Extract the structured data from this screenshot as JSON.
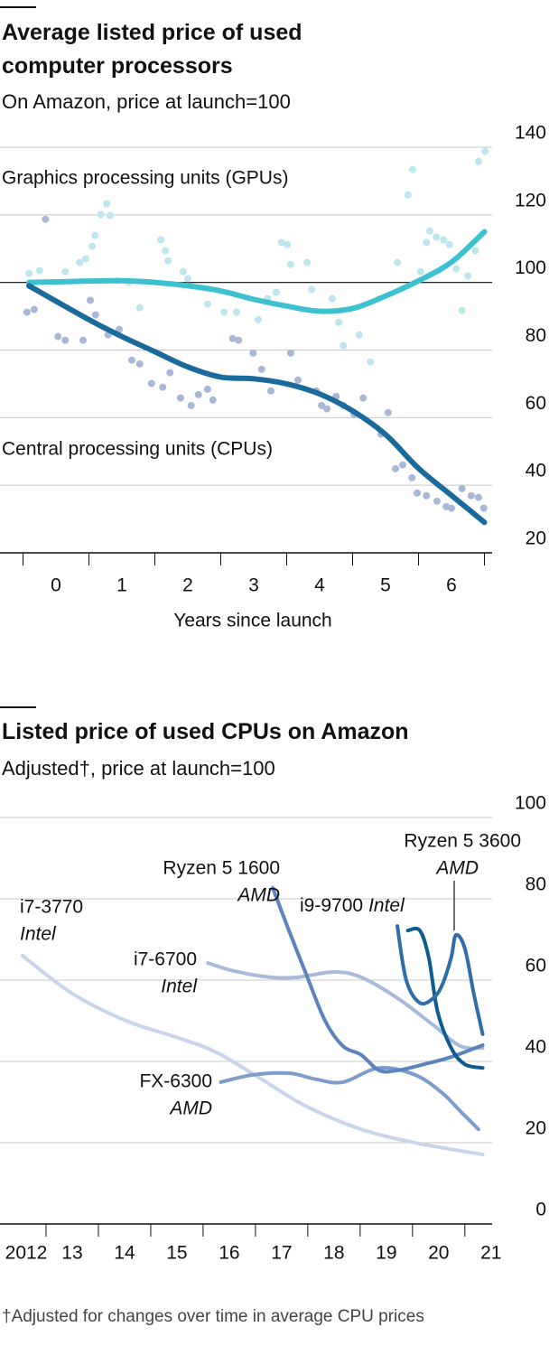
{
  "chart_data": [
    {
      "type": "line",
      "title": "Average listed price of used computer processors",
      "subtitle": "On Amazon, price at launch=100",
      "x_label": "Years since launch",
      "xlim": [
        -0.5,
        6.5
      ],
      "xticks": [
        0,
        1,
        2,
        3,
        4,
        5,
        6
      ],
      "ylim": [
        20,
        140
      ],
      "yticks": [
        20,
        40,
        60,
        80,
        100,
        120,
        140
      ],
      "reference_line": 100,
      "grid": true,
      "series": [
        {
          "name": "Graphics processing units (GPUs)",
          "color": "#3ec1cf",
          "x": [
            -0.41,
            0.5,
            1,
            1.5,
            2,
            2.5,
            3,
            3.5,
            4,
            4.5,
            5,
            5.5,
            6,
            6.5
          ],
          "values": [
            100,
            100.4,
            100.5,
            100,
            99,
            97.5,
            95,
            93,
            91.5,
            92.3,
            96,
            100.5,
            106,
            115
          ],
          "points": {
            "color": "#bde6ee",
            "x": [
              -0.41,
              -0.25,
              0.14,
              0.36,
              0.45,
              0.55,
              0.59,
              0.68,
              0.77,
              0.82,
              0.93,
              1.1,
              1.27,
              1.59,
              1.66,
              1.7,
              1.93,
              2.0,
              2.3,
              2.55,
              2.74,
              3.07,
              3.21,
              3.34,
              3.42,
              3.51,
              3.56,
              3.81,
              3.88,
              4.19,
              4.29,
              4.36,
              4.6,
              4.77,
              5.18,
              5.34,
              5.41,
              5.53,
              5.62,
              5.67,
              5.77,
              5.88,
              5.97,
              6.07,
              6.16,
              6.25,
              6.36,
              6.41,
              6.51
            ],
            "values": [
              102.7,
              103.5,
              103.2,
              105.9,
              107.0,
              110.7,
              113.9,
              120.1,
              123.3,
              119.8,
              100.5,
              100.0,
              92.5,
              112.6,
              109.4,
              106.4,
              103.2,
              101.1,
              93.6,
              91.2,
              91.2,
              89.0,
              95.2,
              97.1,
              111.8,
              111.2,
              105.3,
              105.9,
              97.9,
              95.2,
              88.2,
              81.3,
              84.5,
              76.5,
              105.9,
              125.9,
              133.4,
              103.2,
              111.8,
              115.2,
              113.4,
              112.6,
              111.2,
              104.0,
              91.7,
              101.9,
              109.4,
              135.8,
              138.8
            ]
          }
        },
        {
          "name": "Central processing units (CPUs)",
          "color": "#1a6b9c",
          "x": [
            -0.41,
            0.5,
            1,
            1.5,
            2,
            2.5,
            3,
            3.5,
            4,
            4.5,
            5,
            5.5,
            6,
            6.5
          ],
          "values": [
            99,
            89,
            84,
            79.5,
            75,
            72,
            71.5,
            70,
            67,
            62,
            55,
            45,
            37,
            29
          ],
          "points": {
            "color": "#a9b8d8",
            "x": [
              -0.44,
              -0.33,
              -0.16,
              0.03,
              0.14,
              0.41,
              0.52,
              0.6,
              0.79,
              0.96,
              1.15,
              1.27,
              1.45,
              1.62,
              1.73,
              1.89,
              2.05,
              2.16,
              2.3,
              2.38,
              2.68,
              2.77,
              2.99,
              3.12,
              3.26,
              3.56,
              3.67,
              3.95,
              4.03,
              4.11,
              4.25,
              4.36,
              4.52,
              4.66,
              4.93,
              5.04,
              5.15,
              5.26,
              5.4,
              5.48,
              5.62,
              5.78,
              5.92,
              6.0,
              6.16,
              6.3,
              6.41,
              6.49
            ],
            "values": [
              91.2,
              92.0,
              118.7,
              84.0,
              82.9,
              82.9,
              94.7,
              90.4,
              84.5,
              86.1,
              77.0,
              75.9,
              70.1,
              69.0,
              73.3,
              65.8,
              63.6,
              66.8,
              68.4,
              65.2,
              83.4,
              82.9,
              79.1,
              74.3,
              67.9,
              79.1,
              71.1,
              67.9,
              63.6,
              62.6,
              66.3,
              63.6,
              61.0,
              65.8,
              55.1,
              61.5,
              44.9,
              46.0,
              42.2,
              37.7,
              36.9,
              35.3,
              33.7,
              33.2,
              39.0,
              36.9,
              36.4,
              33.2
            ]
          }
        }
      ]
    },
    {
      "type": "line",
      "title": "Listed price of used CPUs on Amazon",
      "subtitle": "Adjusted†, price at launch=100",
      "footnote": "†Adjusted for changes over time in average CPU prices",
      "xlim": [
        2012.5,
        2021.4
      ],
      "xticks": [
        {
          "value": 2012,
          "label": "2012"
        },
        {
          "value": 2013,
          "label": "13"
        },
        {
          "value": 2014,
          "label": "14"
        },
        {
          "value": 2015,
          "label": "15"
        },
        {
          "value": 2016,
          "label": "16"
        },
        {
          "value": 2017,
          "label": "17"
        },
        {
          "value": 2018,
          "label": "18"
        },
        {
          "value": 2019,
          "label": "19"
        },
        {
          "value": 2020,
          "label": "20"
        },
        {
          "value": 2021,
          "label": "21"
        }
      ],
      "ylim": [
        0,
        100
      ],
      "yticks": [
        0,
        20,
        40,
        60,
        80,
        100
      ],
      "grid": true,
      "series": [
        {
          "name": "i7-3770",
          "maker": "Intel",
          "color": "#c8d5ea",
          "x": [
            2012.55,
            2013.5,
            2014.53,
            2015.57,
            2016.26,
            2017.12,
            2017.98,
            2019.02,
            2020.05,
            2021.34
          ],
          "values": [
            66,
            56.7,
            50,
            45.6,
            42.2,
            35.6,
            28.9,
            23.3,
            20,
            17.1
          ]
        },
        {
          "name": "i7-6700",
          "maker": "Intel",
          "color": "#a8bbdb",
          "x": [
            2016.09,
            2016.6,
            2017.29,
            2017.81,
            2018.5,
            2019.02,
            2019.71,
            2020.4,
            2020.91,
            2021.34
          ],
          "values": [
            64.2,
            62.2,
            60.7,
            60.7,
            62,
            60.7,
            55.6,
            48.9,
            43.8,
            43.3
          ]
        },
        {
          "name": "FX-6300",
          "maker": "AMD",
          "color": "#7d9dca",
          "x": [
            2016.34,
            2016.95,
            2017.64,
            2018.16,
            2018.67,
            2019.36,
            2020.05,
            2020.57,
            2020.91,
            2021.26
          ],
          "values": [
            34.9,
            36.7,
            37.1,
            35.6,
            34.9,
            38.4,
            36.7,
            32.2,
            27.8,
            23.3
          ]
        },
        {
          "name": "Ryzen 5 1600",
          "maker": "AMD",
          "color": "#5b84bc",
          "x": [
            2017.33,
            2017.64,
            2017.98,
            2018.33,
            2018.67,
            2019.02,
            2019.36,
            2019.71,
            2020.22,
            2020.74,
            2021.34
          ],
          "values": [
            82.7,
            72.2,
            61.1,
            50,
            43.8,
            41.6,
            37.8,
            37.8,
            39.3,
            41.1,
            44
          ]
        },
        {
          "name": "i9-9700",
          "maker": "Intel",
          "color": "#0f5d90",
          "x": [
            2019.91,
            2020.14,
            2020.31,
            2020.48,
            2020.74,
            2021,
            2021.34
          ],
          "values": [
            72.2,
            72.2,
            65.6,
            52.2,
            43.3,
            39.3,
            38.4
          ]
        },
        {
          "name": "Ryzen 5 3600",
          "maker": "AMD",
          "color": "#2f6ea8",
          "x": [
            2019.71,
            2019.88,
            2020.14,
            2020.4,
            2020.57,
            2020.74,
            2020.83,
            2021,
            2021.17,
            2021.34
          ],
          "values": [
            73.3,
            60,
            54.4,
            55.6,
            58.9,
            65.6,
            71.1,
            67.8,
            56.7,
            46.7
          ]
        }
      ]
    }
  ]
}
